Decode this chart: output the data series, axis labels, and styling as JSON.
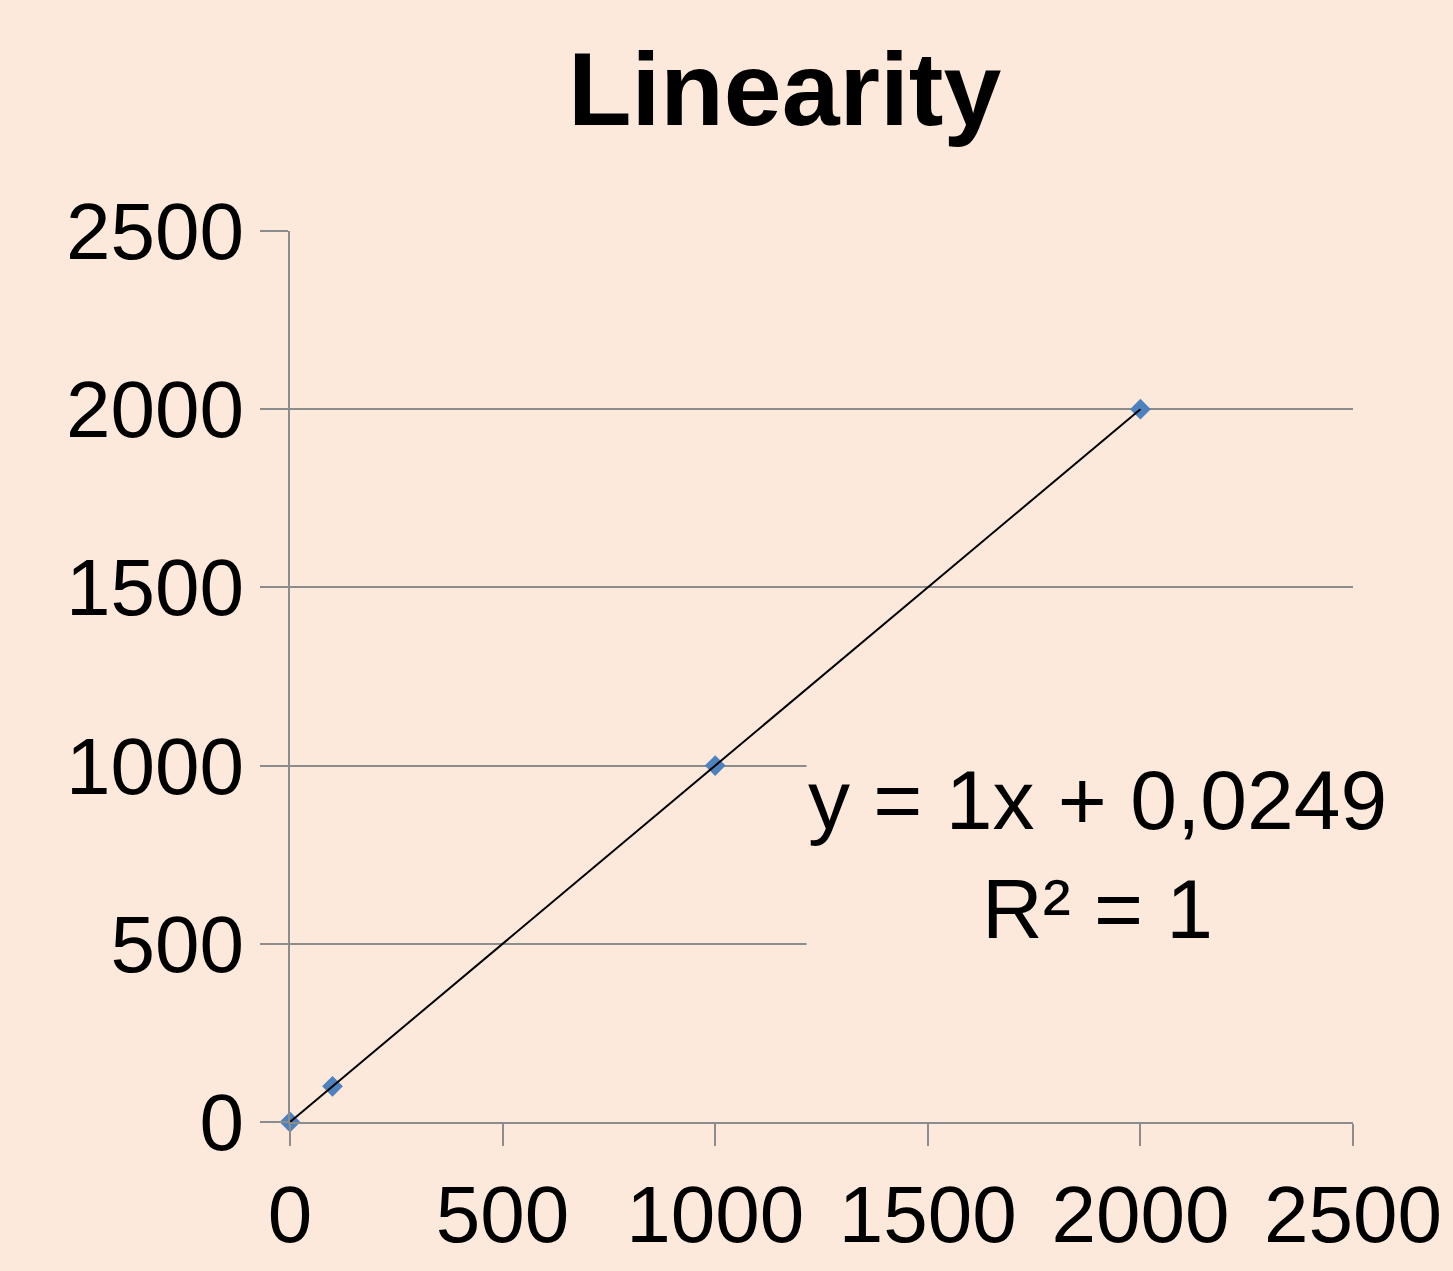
{
  "chart_data": {
    "type": "scatter",
    "title": "Linearity",
    "series": [
      {
        "color": "#4f81bd",
        "x": [
          0,
          100,
          1000,
          2000
        ],
        "values": [
          0,
          100,
          1000,
          2000
        ]
      },
      {
        "type": "line",
        "color": "#000000",
        "marker": "none",
        "x": [
          0,
          2000
        ],
        "values": [
          0,
          2000
        ]
      }
    ],
    "xlim": [
      0,
      2500
    ],
    "xticks": [
      0,
      500,
      1000,
      1500,
      2000,
      2500
    ],
    "ylim": [
      0,
      2500
    ],
    "yticks": [
      0,
      500,
      1000,
      1500,
      2000,
      2500
    ],
    "grid": "y",
    "marker": "diamond",
    "line_style": "solid",
    "annotations": [
      "y = 1x + 0,0249\nR² = 1"
    ]
  }
}
